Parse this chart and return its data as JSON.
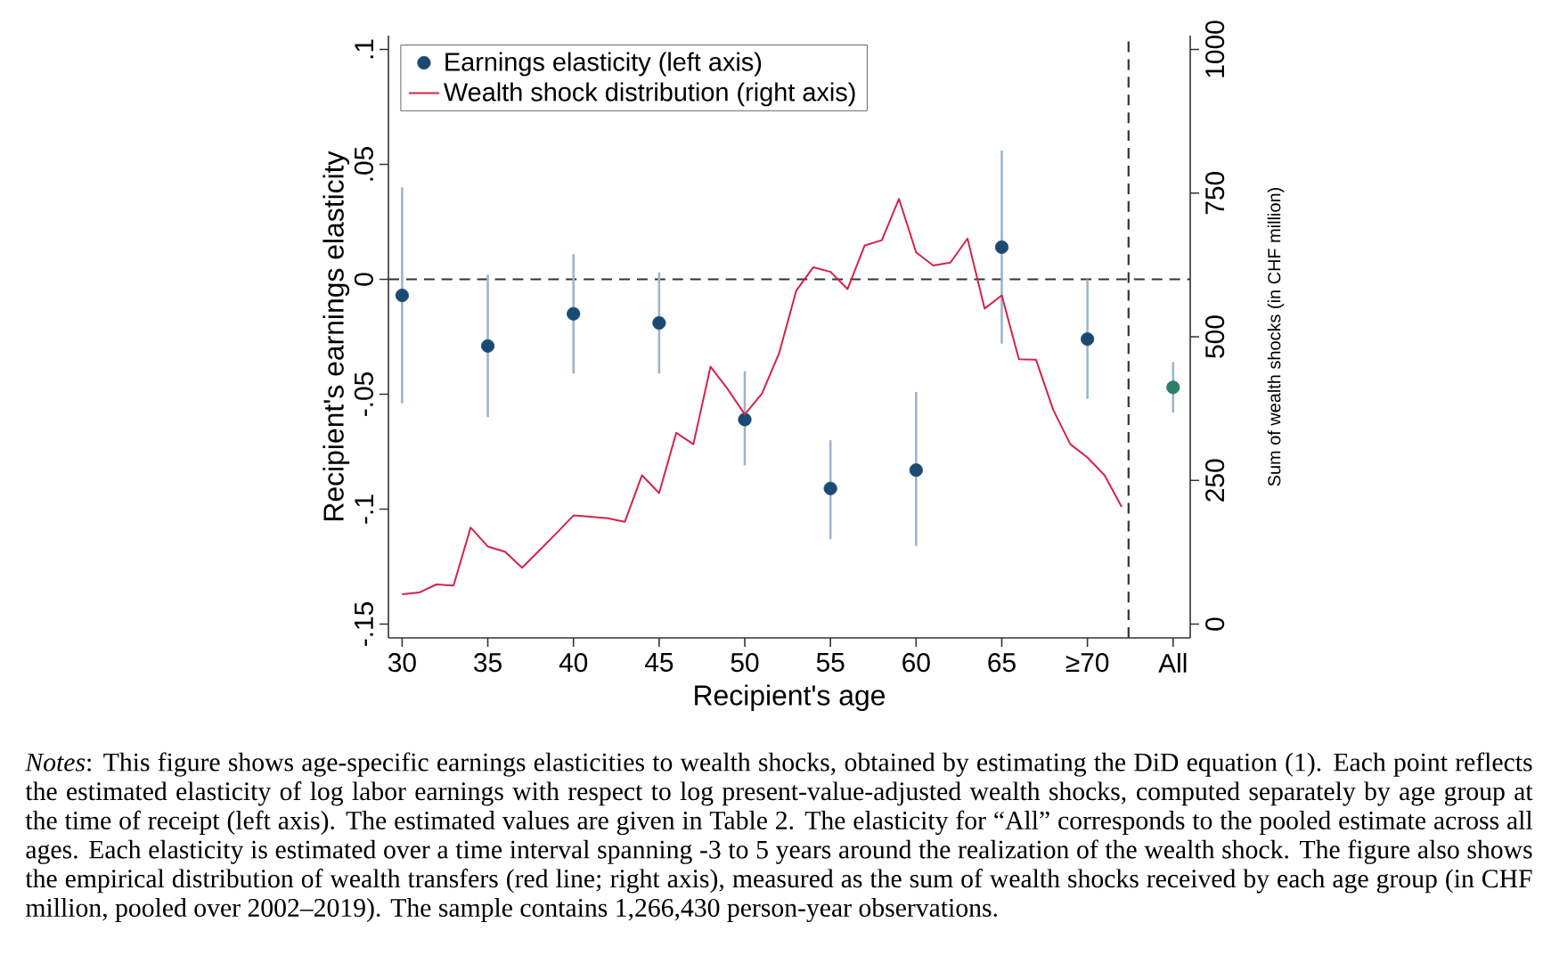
{
  "chart_data": {
    "type": "scatter",
    "xlabel": "Recipient's age",
    "ylabel": "Recipient's earnings elasticity",
    "y2label": "Sum of wealth shocks (in CHF million)",
    "xlim": [
      29.2,
      76
    ],
    "xticks": [
      30,
      35,
      40,
      45,
      50,
      55,
      60,
      65,
      {
        "value": 70,
        "label": "≥70"
      },
      {
        "value": 75,
        "label": "All"
      }
    ],
    "ylim": [
      -0.156,
      0.106
    ],
    "yticks": [
      {
        "value": -0.15,
        "label": "-.15"
      },
      {
        "value": -0.1,
        "label": "-.1"
      },
      {
        "value": -0.05,
        "label": "-.05"
      },
      {
        "value": 0,
        "label": "0"
      },
      {
        "value": 0.05,
        "label": ".05"
      },
      {
        "value": 0.1,
        "label": ".1"
      }
    ],
    "y2lim": [
      -24,
      1024
    ],
    "y2ticks": [
      0,
      250,
      500,
      750,
      1000
    ],
    "marker": "circle",
    "legend": "top left",
    "series": [
      {
        "name": "Earnings elasticity (left axis)",
        "color": "#1a4a72",
        "x": [
          30,
          35,
          40,
          45,
          50,
          55,
          60,
          65,
          70
        ],
        "values": [
          -0.007,
          -0.029,
          -0.015,
          -0.019,
          -0.061,
          -0.091,
          -0.083,
          0.014,
          -0.026
        ],
        "errors": [
          [
            -0.054,
            0.04
          ],
          [
            -0.06,
            0.002
          ],
          [
            -0.041,
            0.011
          ],
          [
            -0.041,
            0.003
          ],
          [
            -0.081,
            -0.04
          ],
          [
            -0.113,
            -0.07
          ],
          [
            -0.116,
            -0.049
          ],
          [
            -0.028,
            0.056
          ],
          [
            -0.052,
            0.0
          ]
        ]
      },
      {
        "color": "#2e7d6b",
        "x": [
          75
        ],
        "values": [
          -0.047
        ],
        "errors": [
          [
            -0.058,
            -0.036
          ]
        ]
      },
      {
        "name": "Wealth shock distribution (right axis)",
        "type": "line",
        "axis": "y2",
        "color": "#d6224a",
        "line_style": "solid",
        "marker": "none",
        "x": [
          30,
          31,
          32,
          33,
          34,
          35,
          36,
          37,
          38,
          39,
          40,
          41,
          42,
          43,
          44,
          45,
          46,
          47,
          48,
          49,
          50,
          51,
          52,
          53,
          54,
          55,
          56,
          57,
          58,
          59,
          60,
          61,
          62,
          63,
          64,
          65,
          66,
          67,
          68,
          69,
          70,
          71,
          72
        ],
        "values": [
          52,
          55,
          69,
          67,
          168,
          135,
          126,
          98,
          128,
          158,
          189,
          187,
          184,
          178,
          259,
          228,
          333,
          313,
          448,
          409,
          365,
          401,
          471,
          580,
          621,
          613,
          583,
          659,
          668,
          740,
          647,
          624,
          629,
          671,
          549,
          572,
          461,
          460,
          373,
          313,
          290,
          259,
          204
        ]
      }
    ],
    "ref_lines": [
      {
        "axis": "y",
        "value": 0,
        "color": "#333333",
        "line_style": "dashed"
      },
      {
        "axis": "x",
        "value": 72.4,
        "color": "#333333",
        "line_style": "dashed"
      }
    ],
    "annotations": [
      "*Notes*: This figure shows age-specific earnings elasticities to wealth shocks, obtained by estimating the DiD equation (1). Each point reflects the estimated elasticity of log labor earnings with respect to log present-value-adjusted wealth shocks, computed separately by age group at the time of receipt (left axis). The estimated values are given in Table 2. The elasticity for “All” corresponds to the pooled estimate across all ages. Each elasticity is estimated over a time interval spanning -3 to 5 years around the realization of the wealth shock. The figure also shows the empirical distribution of wealth transfers (red line; right axis), measured as the sum of wealth shocks received by each age group (in CHF million, pooled over 2002–2019). The sample contains 1,266,430 person-year observations."
    ]
  }
}
